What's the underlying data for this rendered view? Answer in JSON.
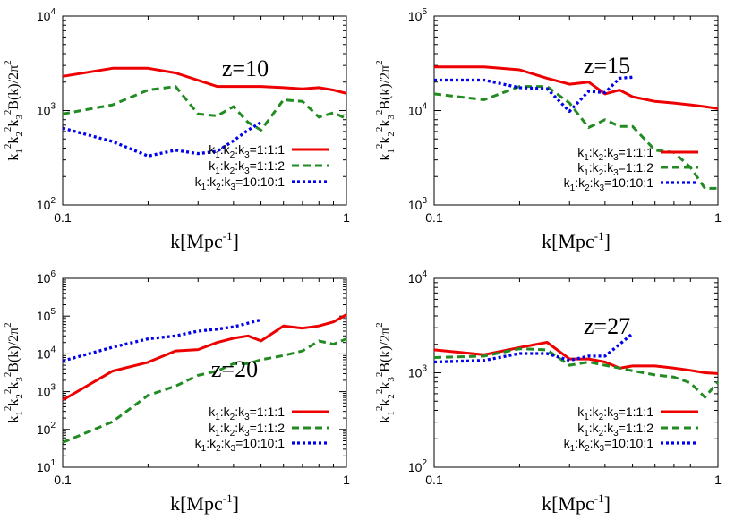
{
  "chart_data": [
    {
      "type": "line",
      "annotation": "z=10",
      "xlabel": "k[Mpc-1]",
      "ylabel": "k1^2 k2^2 k3^2 B(k)/2π^2",
      "xscale": "log",
      "yscale": "log",
      "xlim": [
        0.1,
        1
      ],
      "ylim": [
        100,
        10000
      ],
      "xticks": [
        "0.1",
        "1"
      ],
      "yticks": [
        {
          "base": "10",
          "exp": "2"
        },
        {
          "base": "10",
          "exp": "3"
        },
        {
          "base": "10",
          "exp": "4"
        }
      ],
      "legend_position": "bottom-right",
      "series": [
        {
          "name": "k1:k2:k3=1:1:1",
          "color": "#ee0000",
          "style": "solid",
          "x": [
            0.1,
            0.15,
            0.2,
            0.25,
            0.35,
            0.5,
            0.6,
            0.7,
            0.8,
            0.9,
            1.0
          ],
          "y": [
            2300,
            2800,
            2800,
            2500,
            1800,
            1800,
            1750,
            1700,
            1750,
            1650,
            1520
          ]
        },
        {
          "name": "k1:k2:k3=1:1:2",
          "color": "#228b22",
          "style": "dashed",
          "x": [
            0.1,
            0.15,
            0.2,
            0.25,
            0.3,
            0.35,
            0.4,
            0.45,
            0.5,
            0.6,
            0.7,
            0.8,
            0.9,
            1.0
          ],
          "y": [
            920,
            1150,
            1650,
            1800,
            920,
            880,
            1100,
            750,
            620,
            1300,
            1250,
            850,
            950,
            820
          ]
        },
        {
          "name": "k1:k2:k3=10:10:1",
          "color": "#0000ee",
          "style": "dotted",
          "x": [
            0.1,
            0.15,
            0.2,
            0.25,
            0.3,
            0.35,
            0.4,
            0.45,
            0.5
          ],
          "y": [
            650,
            470,
            330,
            380,
            350,
            370,
            480,
            620,
            750
          ]
        }
      ]
    },
    {
      "type": "line",
      "annotation": "z=15",
      "xlabel": "k[Mpc-1]",
      "ylabel": "k1^2 k2^2 k3^2 B(k)/2π^2",
      "xscale": "log",
      "yscale": "log",
      "xlim": [
        0.1,
        1
      ],
      "ylim": [
        1000,
        100000
      ],
      "xticks": [
        "0.1",
        "1"
      ],
      "yticks": [
        {
          "base": "10",
          "exp": "3"
        },
        {
          "base": "10",
          "exp": "4"
        },
        {
          "base": "10",
          "exp": "5"
        }
      ],
      "legend_position": "bottom-right",
      "series": [
        {
          "name": "k1:k2:k3=1:1:1",
          "color": "#ee0000",
          "style": "solid",
          "x": [
            0.1,
            0.15,
            0.2,
            0.25,
            0.3,
            0.35,
            0.4,
            0.45,
            0.5,
            0.6,
            0.7,
            0.8,
            0.9,
            1.0
          ],
          "y": [
            29000,
            29000,
            27000,
            22000,
            19000,
            20000,
            15000,
            16500,
            14000,
            12500,
            12000,
            11500,
            11000,
            10500
          ]
        },
        {
          "name": "k1:k2:k3=1:1:2",
          "color": "#228b22",
          "style": "dashed",
          "x": [
            0.1,
            0.15,
            0.2,
            0.25,
            0.3,
            0.35,
            0.4,
            0.45,
            0.5,
            0.6,
            0.7,
            0.8,
            0.9,
            1.0
          ],
          "y": [
            15000,
            13000,
            18000,
            18000,
            12000,
            6600,
            8000,
            6800,
            6800,
            3800,
            3600,
            2500,
            1500,
            1500
          ]
        },
        {
          "name": "k1:k2:k3=10:10:1",
          "color": "#0000ee",
          "style": "dotted",
          "x": [
            0.1,
            0.15,
            0.2,
            0.25,
            0.3,
            0.35,
            0.4,
            0.45,
            0.5
          ],
          "y": [
            21000,
            21000,
            17500,
            17000,
            9800,
            16000,
            15500,
            22000,
            22500
          ]
        }
      ]
    },
    {
      "type": "line",
      "annotation": "z=20",
      "xlabel": "k[Mpc-1]",
      "ylabel": "k1^2 k2^2 k3^2 B(k)/2π^2",
      "xscale": "log",
      "yscale": "log",
      "xlim": [
        0.1,
        1
      ],
      "ylim": [
        10,
        1000000
      ],
      "xticks": [
        "0.1",
        "1"
      ],
      "yticks": [
        {
          "base": "10",
          "exp": "1"
        },
        {
          "base": "10",
          "exp": "2"
        },
        {
          "base": "10",
          "exp": "3"
        },
        {
          "base": "10",
          "exp": "4"
        },
        {
          "base": "10",
          "exp": "5"
        },
        {
          "base": "10",
          "exp": "6"
        }
      ],
      "legend_position": "bottom-right",
      "series": [
        {
          "name": "k1:k2:k3=1:1:1",
          "color": "#ee0000",
          "style": "solid",
          "x": [
            0.1,
            0.15,
            0.2,
            0.25,
            0.3,
            0.35,
            0.4,
            0.45,
            0.5,
            0.6,
            0.7,
            0.8,
            0.9,
            1.0
          ],
          "y": [
            600,
            3500,
            6000,
            12000,
            13000,
            20000,
            26000,
            30000,
            22000,
            55000,
            48000,
            55000,
            70000,
            110000
          ]
        },
        {
          "name": "k1:k2:k3=1:1:2",
          "color": "#228b22",
          "style": "dashed",
          "x": [
            0.1,
            0.15,
            0.2,
            0.25,
            0.3,
            0.35,
            0.4,
            0.45,
            0.5,
            0.6,
            0.7,
            0.8,
            0.9,
            1.0
          ],
          "y": [
            45,
            160,
            800,
            1400,
            2700,
            3500,
            5500,
            5500,
            7000,
            9000,
            12000,
            22000,
            18000,
            25000
          ]
        },
        {
          "name": "k1:k2:k3=10:10:1",
          "color": "#0000ee",
          "style": "dotted",
          "x": [
            0.1,
            0.15,
            0.2,
            0.25,
            0.3,
            0.35,
            0.4,
            0.45,
            0.5
          ],
          "y": [
            6500,
            15000,
            25000,
            30000,
            40000,
            45000,
            52000,
            65000,
            80000
          ]
        }
      ]
    },
    {
      "type": "line",
      "annotation": "z=27",
      "xlabel": "k[Mpc-1]",
      "ylabel": "k1^2 k2^2 k3^2 B(k)/2π^2",
      "xscale": "log",
      "yscale": "log",
      "xlim": [
        0.1,
        1
      ],
      "ylim": [
        100,
        10000
      ],
      "xticks": [
        "0.1",
        "1"
      ],
      "yticks": [
        {
          "base": "10",
          "exp": "2"
        },
        {
          "base": "10",
          "exp": "3"
        },
        {
          "base": "10",
          "exp": "4"
        }
      ],
      "legend_position": "bottom-right",
      "series": [
        {
          "name": "k1:k2:k3=1:1:1",
          "color": "#ee0000",
          "style": "solid",
          "x": [
            0.1,
            0.15,
            0.2,
            0.25,
            0.3,
            0.35,
            0.4,
            0.45,
            0.5,
            0.6,
            0.7,
            0.8,
            0.9,
            1.0
          ],
          "y": [
            1750,
            1550,
            1850,
            2100,
            1400,
            1400,
            1300,
            1120,
            1180,
            1180,
            1120,
            1060,
            1000,
            980
          ]
        },
        {
          "name": "k1:k2:k3=1:1:2",
          "color": "#228b22",
          "style": "dashed",
          "x": [
            0.1,
            0.15,
            0.2,
            0.25,
            0.3,
            0.35,
            0.4,
            0.45,
            0.5,
            0.6,
            0.7,
            0.8,
            0.9,
            1.0
          ],
          "y": [
            1450,
            1500,
            1800,
            1750,
            1200,
            1300,
            1200,
            1120,
            1050,
            950,
            900,
            780,
            550,
            800
          ]
        },
        {
          "name": "k1:k2:k3=10:10:1",
          "color": "#0000ee",
          "style": "dotted",
          "x": [
            0.1,
            0.15,
            0.2,
            0.25,
            0.3,
            0.35,
            0.4,
            0.45,
            0.5
          ],
          "y": [
            1300,
            1350,
            1600,
            1600,
            1350,
            1500,
            1500,
            2000,
            2600
          ]
        }
      ]
    }
  ]
}
